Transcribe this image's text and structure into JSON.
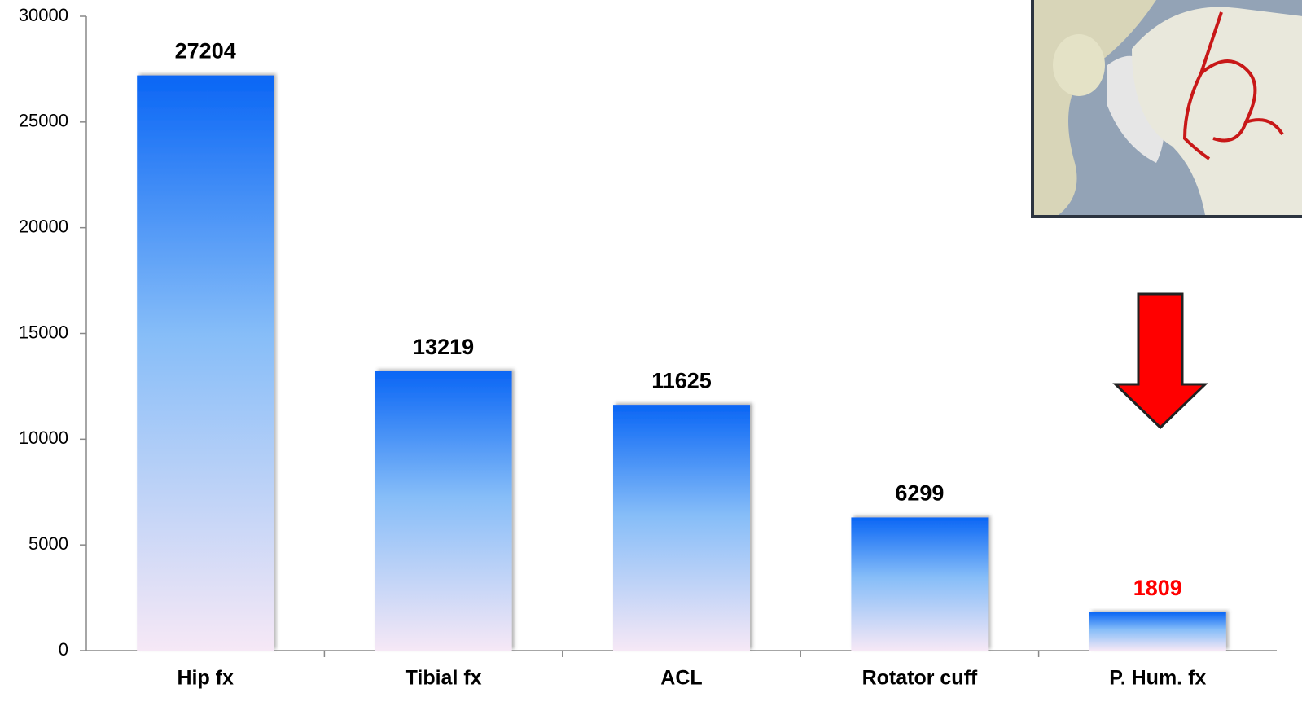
{
  "chart_data": {
    "type": "bar",
    "categories": [
      "Hip fx",
      "Tibial fx",
      "ACL",
      "Rotator cuff",
      "P. Hum. fx"
    ],
    "values": [
      27204,
      13219,
      11625,
      6299,
      1809
    ],
    "color": "#0a66f5",
    "label_colors": [
      "#000000",
      "#000000",
      "#000000",
      "#000000",
      "#ff0000"
    ],
    "ylim": [
      0,
      30000
    ],
    "yticks": [
      0,
      5000,
      10000,
      15000,
      20000,
      25000,
      30000
    ]
  }
}
